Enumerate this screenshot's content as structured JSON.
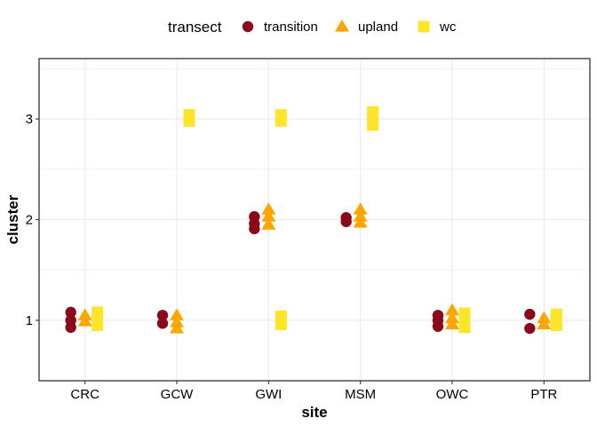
{
  "chart_data": {
    "type": "scatter",
    "xlabel": "site",
    "ylabel": "cluster",
    "categories": [
      "CRC",
      "GCW",
      "GWI",
      "MSM",
      "OWC",
      "PTR"
    ],
    "yticks": [
      1,
      2,
      3
    ],
    "ylim": [
      0.4,
      3.6
    ],
    "grid": true,
    "legend": {
      "title": "transect",
      "position": "top",
      "entries": [
        {
          "name": "transition",
          "shape": "circle",
          "color": "#8B0A1A"
        },
        {
          "name": "upland",
          "shape": "triangle",
          "color": "#FFA500"
        },
        {
          "name": "wc",
          "shape": "square",
          "color": "#FFE52A"
        }
      ]
    },
    "series": [
      {
        "name": "transition",
        "points": [
          {
            "x": "CRC",
            "y": 1.08
          },
          {
            "x": "CRC",
            "y": 1.0
          },
          {
            "x": "CRC",
            "y": 0.93
          },
          {
            "x": "GCW",
            "y": 1.05
          },
          {
            "x": "GCW",
            "y": 0.97
          },
          {
            "x": "GWI",
            "y": 2.03
          },
          {
            "x": "GWI",
            "y": 1.96
          },
          {
            "x": "GWI",
            "y": 1.91
          },
          {
            "x": "MSM",
            "y": 2.02
          },
          {
            "x": "MSM",
            "y": 1.98
          },
          {
            "x": "OWC",
            "y": 1.05
          },
          {
            "x": "OWC",
            "y": 1.0
          },
          {
            "x": "OWC",
            "y": 0.94
          },
          {
            "x": "PTR",
            "y": 1.06
          },
          {
            "x": "PTR",
            "y": 0.92
          }
        ]
      },
      {
        "name": "upland",
        "points": [
          {
            "x": "CRC",
            "y": 1.05
          },
          {
            "x": "CRC",
            "y": 0.99
          },
          {
            "x": "GCW",
            "y": 1.05
          },
          {
            "x": "GCW",
            "y": 0.98
          },
          {
            "x": "GCW",
            "y": 0.92
          },
          {
            "x": "GWI",
            "y": 2.1
          },
          {
            "x": "GWI",
            "y": 2.03
          },
          {
            "x": "GWI",
            "y": 1.95
          },
          {
            "x": "MSM",
            "y": 2.1
          },
          {
            "x": "MSM",
            "y": 2.03
          },
          {
            "x": "MSM",
            "y": 1.97
          },
          {
            "x": "OWC",
            "y": 1.1
          },
          {
            "x": "OWC",
            "y": 1.02
          },
          {
            "x": "OWC",
            "y": 0.96
          },
          {
            "x": "PTR",
            "y": 1.02
          },
          {
            "x": "PTR",
            "y": 0.96
          }
        ]
      },
      {
        "name": "wc",
        "points": [
          {
            "x": "CRC",
            "y": 1.08
          },
          {
            "x": "CRC",
            "y": 1.01
          },
          {
            "x": "CRC",
            "y": 0.95
          },
          {
            "x": "GCW",
            "y": 3.04
          },
          {
            "x": "GCW",
            "y": 2.98
          },
          {
            "x": "GWI",
            "y": 3.04
          },
          {
            "x": "GWI",
            "y": 2.98
          },
          {
            "x": "GWI",
            "y": 1.04
          },
          {
            "x": "GWI",
            "y": 0.96
          },
          {
            "x": "MSM",
            "y": 3.07
          },
          {
            "x": "MSM",
            "y": 3.0
          },
          {
            "x": "MSM",
            "y": 2.94
          },
          {
            "x": "OWC",
            "y": 1.07
          },
          {
            "x": "OWC",
            "y": 1.0
          },
          {
            "x": "OWC",
            "y": 0.93
          },
          {
            "x": "PTR",
            "y": 1.06
          },
          {
            "x": "PTR",
            "y": 1.0
          },
          {
            "x": "PTR",
            "y": 0.95
          }
        ]
      }
    ]
  }
}
